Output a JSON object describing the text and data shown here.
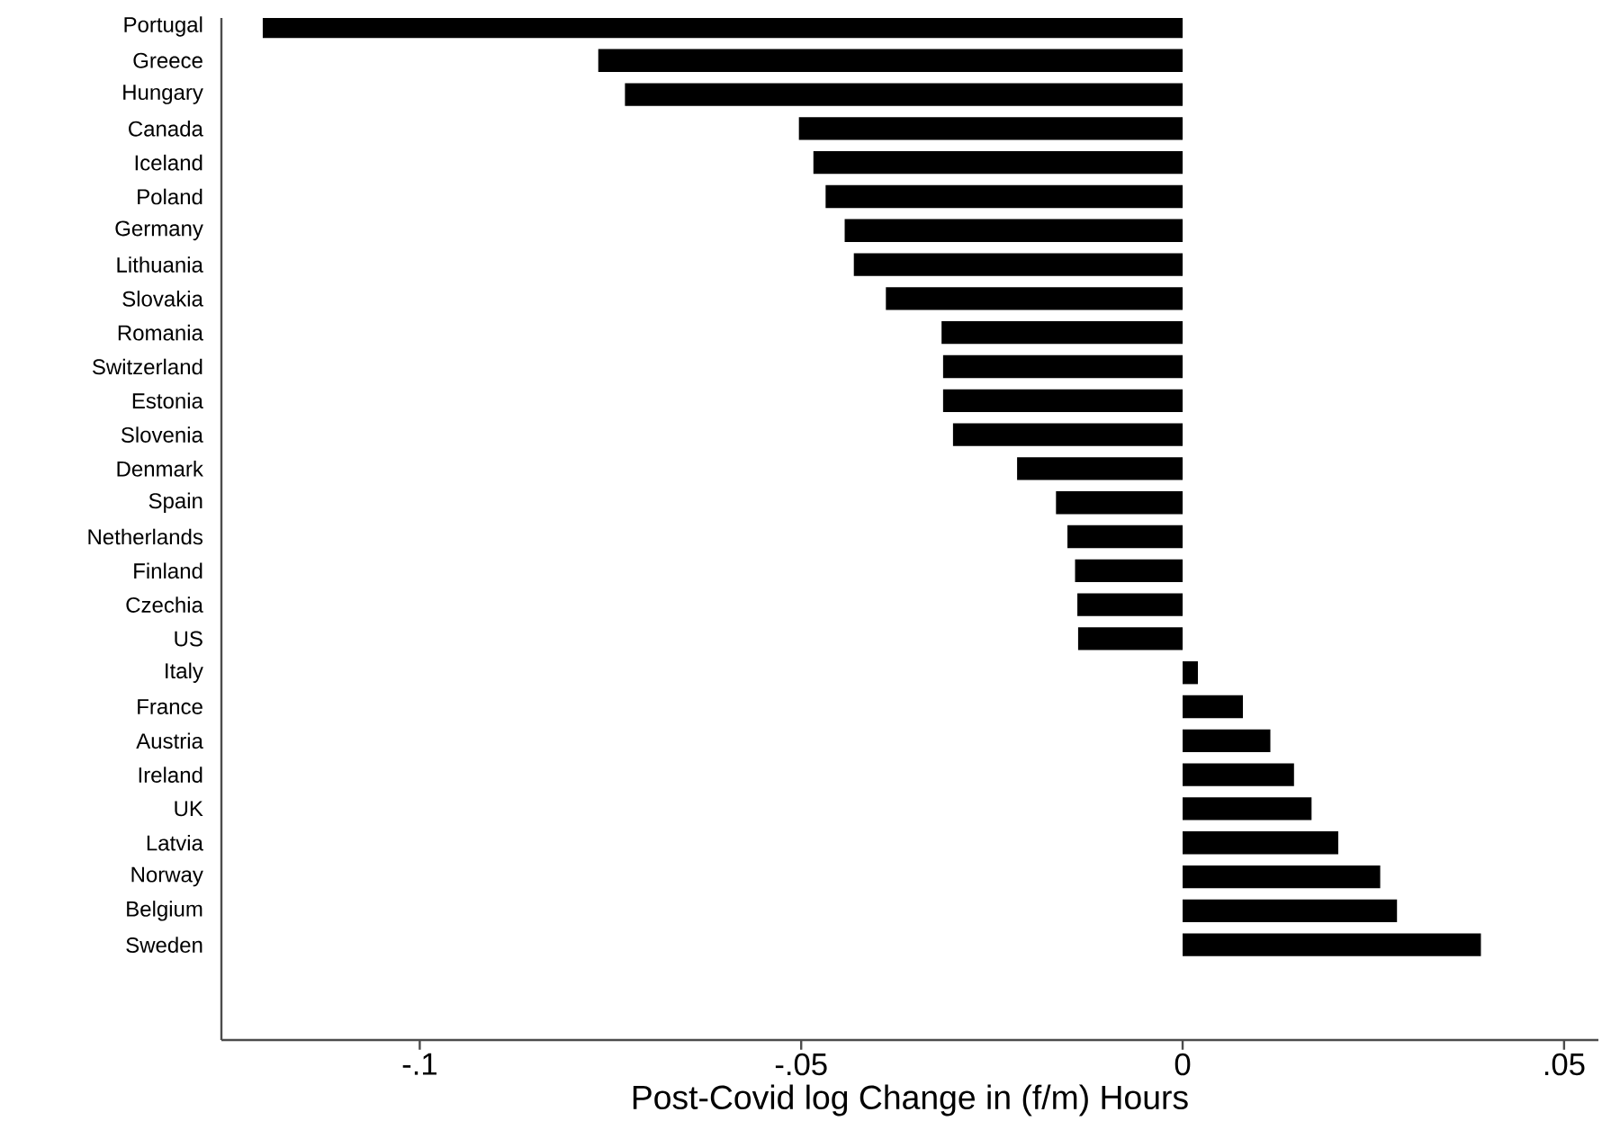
{
  "chart_data": {
    "type": "bar",
    "orientation": "horizontal",
    "xlabel": "Post-Covid log Change in (f/m) Hours",
    "categories": [
      "Portugal",
      "Greece",
      "Hungary",
      "Canada",
      "Iceland",
      "Poland",
      "Germany",
      "Lithuania",
      "Slovakia",
      "Romania",
      "Switzerland",
      "Estonia",
      "Slovenia",
      "Denmark",
      "Spain",
      "Netherlands",
      "Finland",
      "Czechia",
      "US",
      "Italy",
      "France",
      "Austria",
      "Ireland",
      "UK",
      "Latvia",
      "Norway",
      "Belgium",
      "Sweden"
    ],
    "values": [
      -0.1206,
      -0.0766,
      -0.0731,
      -0.0503,
      -0.0484,
      -0.0468,
      -0.0443,
      -0.0431,
      -0.0389,
      -0.0316,
      -0.0314,
      -0.0314,
      -0.0301,
      -0.0217,
      -0.0166,
      -0.0151,
      -0.0141,
      -0.0138,
      -0.0137,
      0.002,
      0.0079,
      0.0115,
      0.0146,
      0.0169,
      0.0204,
      0.0259,
      0.0281,
      0.0391
    ],
    "color": "#000000",
    "xlim": [
      -0.126,
      0.0545
    ],
    "xticks": [
      {
        "value": -0.1,
        "label": "-.1"
      },
      {
        "value": -0.05,
        "label": "-.05"
      },
      {
        "value": 0,
        "label": "0"
      },
      {
        "value": 0.05,
        "label": ".05"
      }
    ],
    "grid": false
  }
}
